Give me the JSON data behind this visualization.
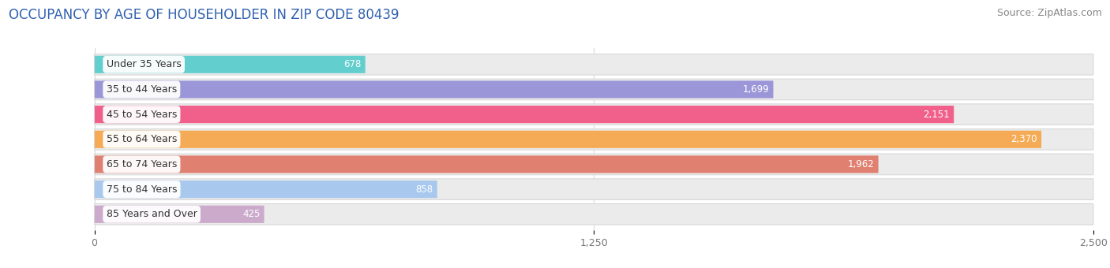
{
  "title": "OCCUPANCY BY AGE OF HOUSEHOLDER IN ZIP CODE 80439",
  "source": "Source: ZipAtlas.com",
  "categories": [
    "Under 35 Years",
    "35 to 44 Years",
    "45 to 54 Years",
    "55 to 64 Years",
    "65 to 74 Years",
    "75 to 84 Years",
    "85 Years and Over"
  ],
  "values": [
    678,
    1699,
    2151,
    2370,
    1962,
    858,
    425
  ],
  "bar_colors": [
    "#62cece",
    "#9b96d8",
    "#f0608a",
    "#f5ab55",
    "#e08070",
    "#a8c8ee",
    "#ccaacc"
  ],
  "bar_bg_color": "#ebebeb",
  "bar_border_color": "#d8d8d8",
  "xlim": [
    0,
    2500
  ],
  "xticks": [
    0,
    1250,
    2500
  ],
  "xtick_labels": [
    "0",
    "1,250",
    "2,500"
  ],
  "title_color": "#3060b0",
  "title_fontsize": 12,
  "source_fontsize": 9,
  "label_fontsize": 9,
  "value_fontsize": 8.5,
  "bar_height": 0.7,
  "background_color": "#ffffff"
}
